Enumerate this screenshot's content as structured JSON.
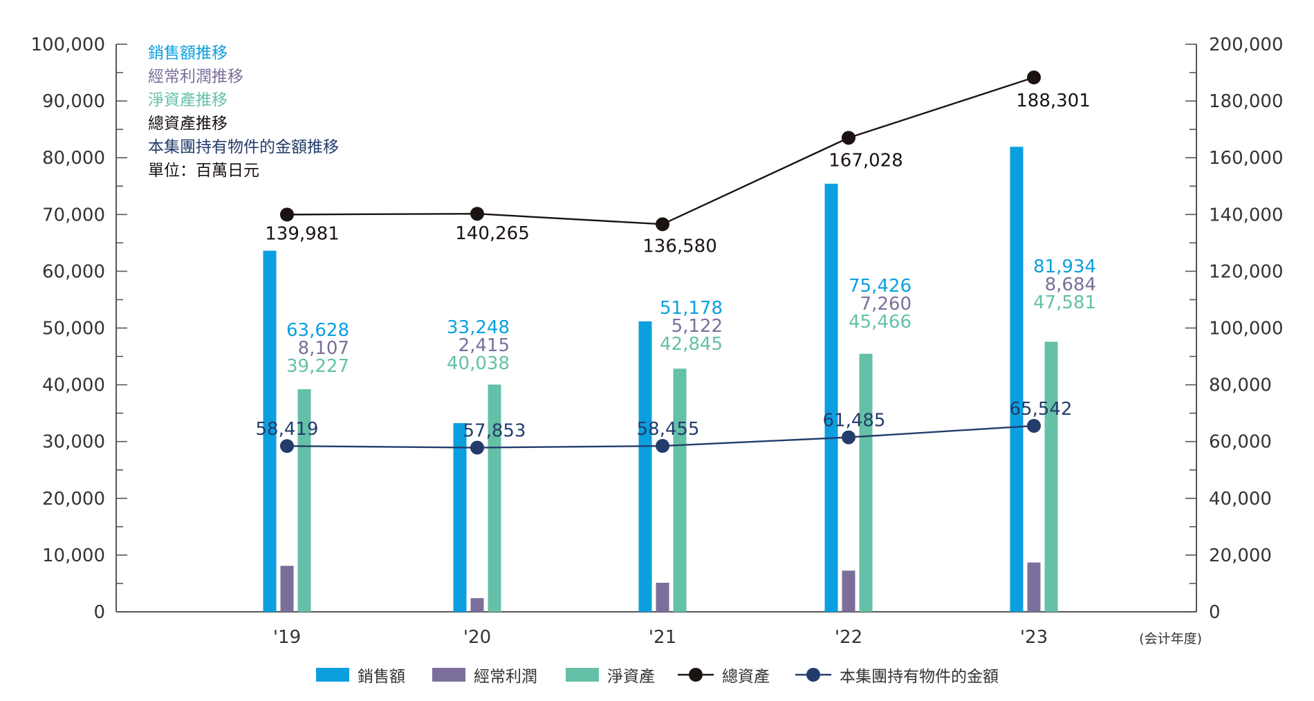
{
  "chart_data": {
    "type": "bar",
    "categories": [
      "'19",
      "'20",
      "'21",
      "'22",
      "'23"
    ],
    "x_note": "(会计年度)",
    "unit": "單位：百萬日元",
    "y_left": {
      "ylim": [
        0,
        100000
      ],
      "ticks": [
        "0",
        "10,000",
        "20,000",
        "30,000",
        "40,000",
        "50,000",
        "60,000",
        "70,000",
        "80,000",
        "90,000",
        "100,000"
      ]
    },
    "y_right": {
      "ylim": [
        0,
        200000
      ],
      "ticks": [
        "0",
        "20,000",
        "40,000",
        "60,000",
        "80,000",
        "100,000",
        "120,000",
        "140,000",
        "160,000",
        "180,000",
        "200,000"
      ]
    },
    "bar_series": [
      {
        "name": "銷售額",
        "color": "#0b9fe0",
        "values": [
          63628,
          33248,
          51178,
          75426,
          81934
        ],
        "labels": [
          "63,628",
          "33,248",
          "51,178",
          "75,426",
          "81,934"
        ]
      },
      {
        "name": "經常利潤",
        "color": "#7c6e9b",
        "values": [
          8107,
          2415,
          5122,
          7260,
          8684
        ],
        "labels": [
          "8,107",
          "2,415",
          "5,122",
          "7,260",
          "8,684"
        ]
      },
      {
        "name": "淨資產",
        "color": "#65c0a8",
        "values": [
          39227,
          40038,
          42845,
          45466,
          47581
        ],
        "labels": [
          "39,227",
          "40,038",
          "42,845",
          "45,466",
          "47,581"
        ]
      }
    ],
    "line_series": [
      {
        "name": "總資產",
        "axis": "right",
        "color": "#1a1311",
        "values": [
          139981,
          140265,
          136580,
          167028,
          188301
        ],
        "labels": [
          "139,981",
          "140,265",
          "136,580",
          "167,028",
          "188,301"
        ]
      },
      {
        "name": "本集團持有物件的金額",
        "axis": "right",
        "color": "#233c6b",
        "values": [
          58419,
          57853,
          58455,
          61485,
          65542
        ],
        "labels": [
          "58,419",
          "57,853",
          "58,455",
          "61,485",
          "65,542"
        ]
      }
    ],
    "legend_placement": "bottom",
    "top_left_notes": [
      {
        "text": "銷售額推移",
        "color": "#0b9fe0"
      },
      {
        "text": "經常利潤推移",
        "color": "#7c6e9b"
      },
      {
        "text": "淨資產推移",
        "color": "#65c0a8"
      },
      {
        "text": "總資產推移",
        "color": "#1a1311"
      },
      {
        "text": "本集團持有物件的金額推移",
        "color": "#233c6b"
      },
      {
        "text": "單位：百萬日元",
        "color": "#1a1311"
      }
    ]
  }
}
